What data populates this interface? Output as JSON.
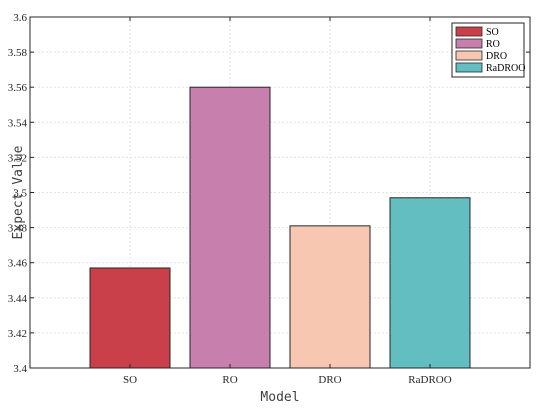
{
  "chart_data": {
    "type": "bar",
    "title": "",
    "xlabel": "Model",
    "ylabel": "Expect Value",
    "categories": [
      "SO",
      "RO",
      "DRO",
      "RaDROO"
    ],
    "values": [
      3.457,
      3.56,
      3.481,
      3.497
    ],
    "colors": [
      "#c9404a",
      "#c780ae",
      "#f8c7b2",
      "#62bec0"
    ],
    "ylim": [
      3.4,
      3.6
    ],
    "yticks": [
      "3.4",
      "3.42",
      "3.44",
      "3.46",
      "3.48",
      "3.5",
      "3.52",
      "3.54",
      "3.56",
      "3.58",
      "3.6"
    ],
    "grid": true,
    "legend": {
      "placement": "top-right",
      "entries": [
        "SO",
        "RO",
        "DRO",
        "RaDROO"
      ]
    }
  }
}
